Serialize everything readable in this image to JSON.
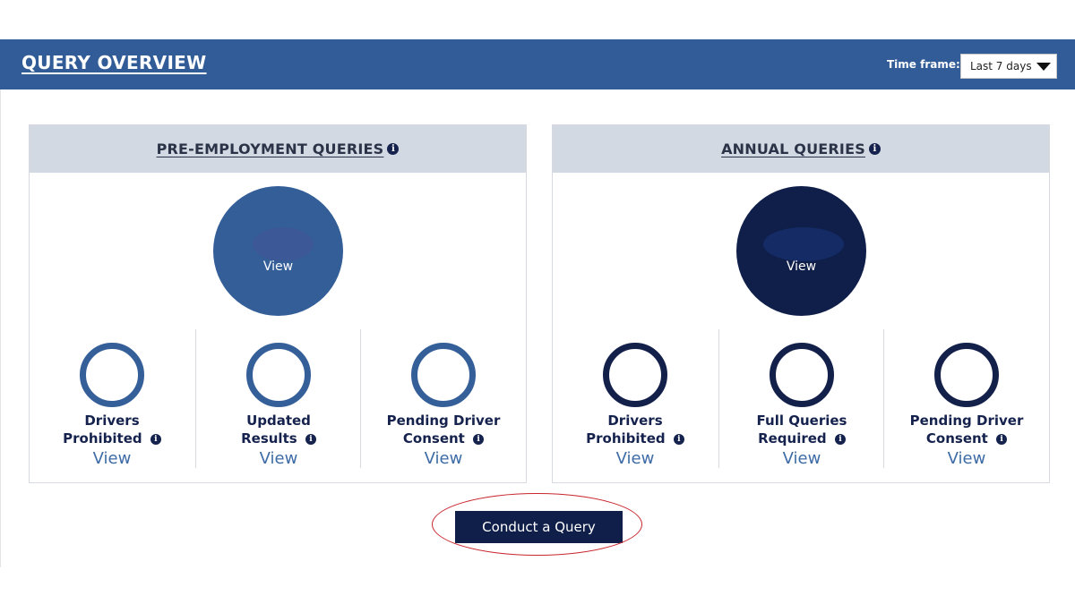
{
  "header": {
    "title": "QUERY OVERVIEW",
    "timeframe_label": "Time frame:",
    "timeframe_value": "Last 7 days"
  },
  "panels": {
    "pre_employment": {
      "title": "PRE-EMPLOYMENT QUERIES",
      "main_view": "View",
      "items": [
        {
          "line1": "Drivers",
          "line2": "Prohibited",
          "view": "View"
        },
        {
          "line1": "Updated",
          "line2": "Results",
          "view": "View"
        },
        {
          "line1": "Pending Driver",
          "line2": "Consent",
          "view": "View"
        }
      ]
    },
    "annual": {
      "title": "ANNUAL QUERIES",
      "main_view": "View",
      "items": [
        {
          "line1": "Drivers",
          "line2": "Prohibited",
          "view": "View"
        },
        {
          "line1": "Full Queries",
          "line2": "Required",
          "view": "View"
        },
        {
          "line1": "Pending Driver",
          "line2": "Consent",
          "view": "View"
        }
      ]
    }
  },
  "info_glyph": "i",
  "cta": {
    "label": "Conduct a Query"
  },
  "colors": {
    "header_bg": "#325c97",
    "panel_head_bg": "#d3d9e2",
    "pre_employment_accent": "#335e98",
    "annual_accent": "#0f1f4a",
    "link": "#3d6ba5",
    "highlight_ring": "#c8252c"
  },
  "icons": [
    "info-icon",
    "caret-down-icon"
  ]
}
